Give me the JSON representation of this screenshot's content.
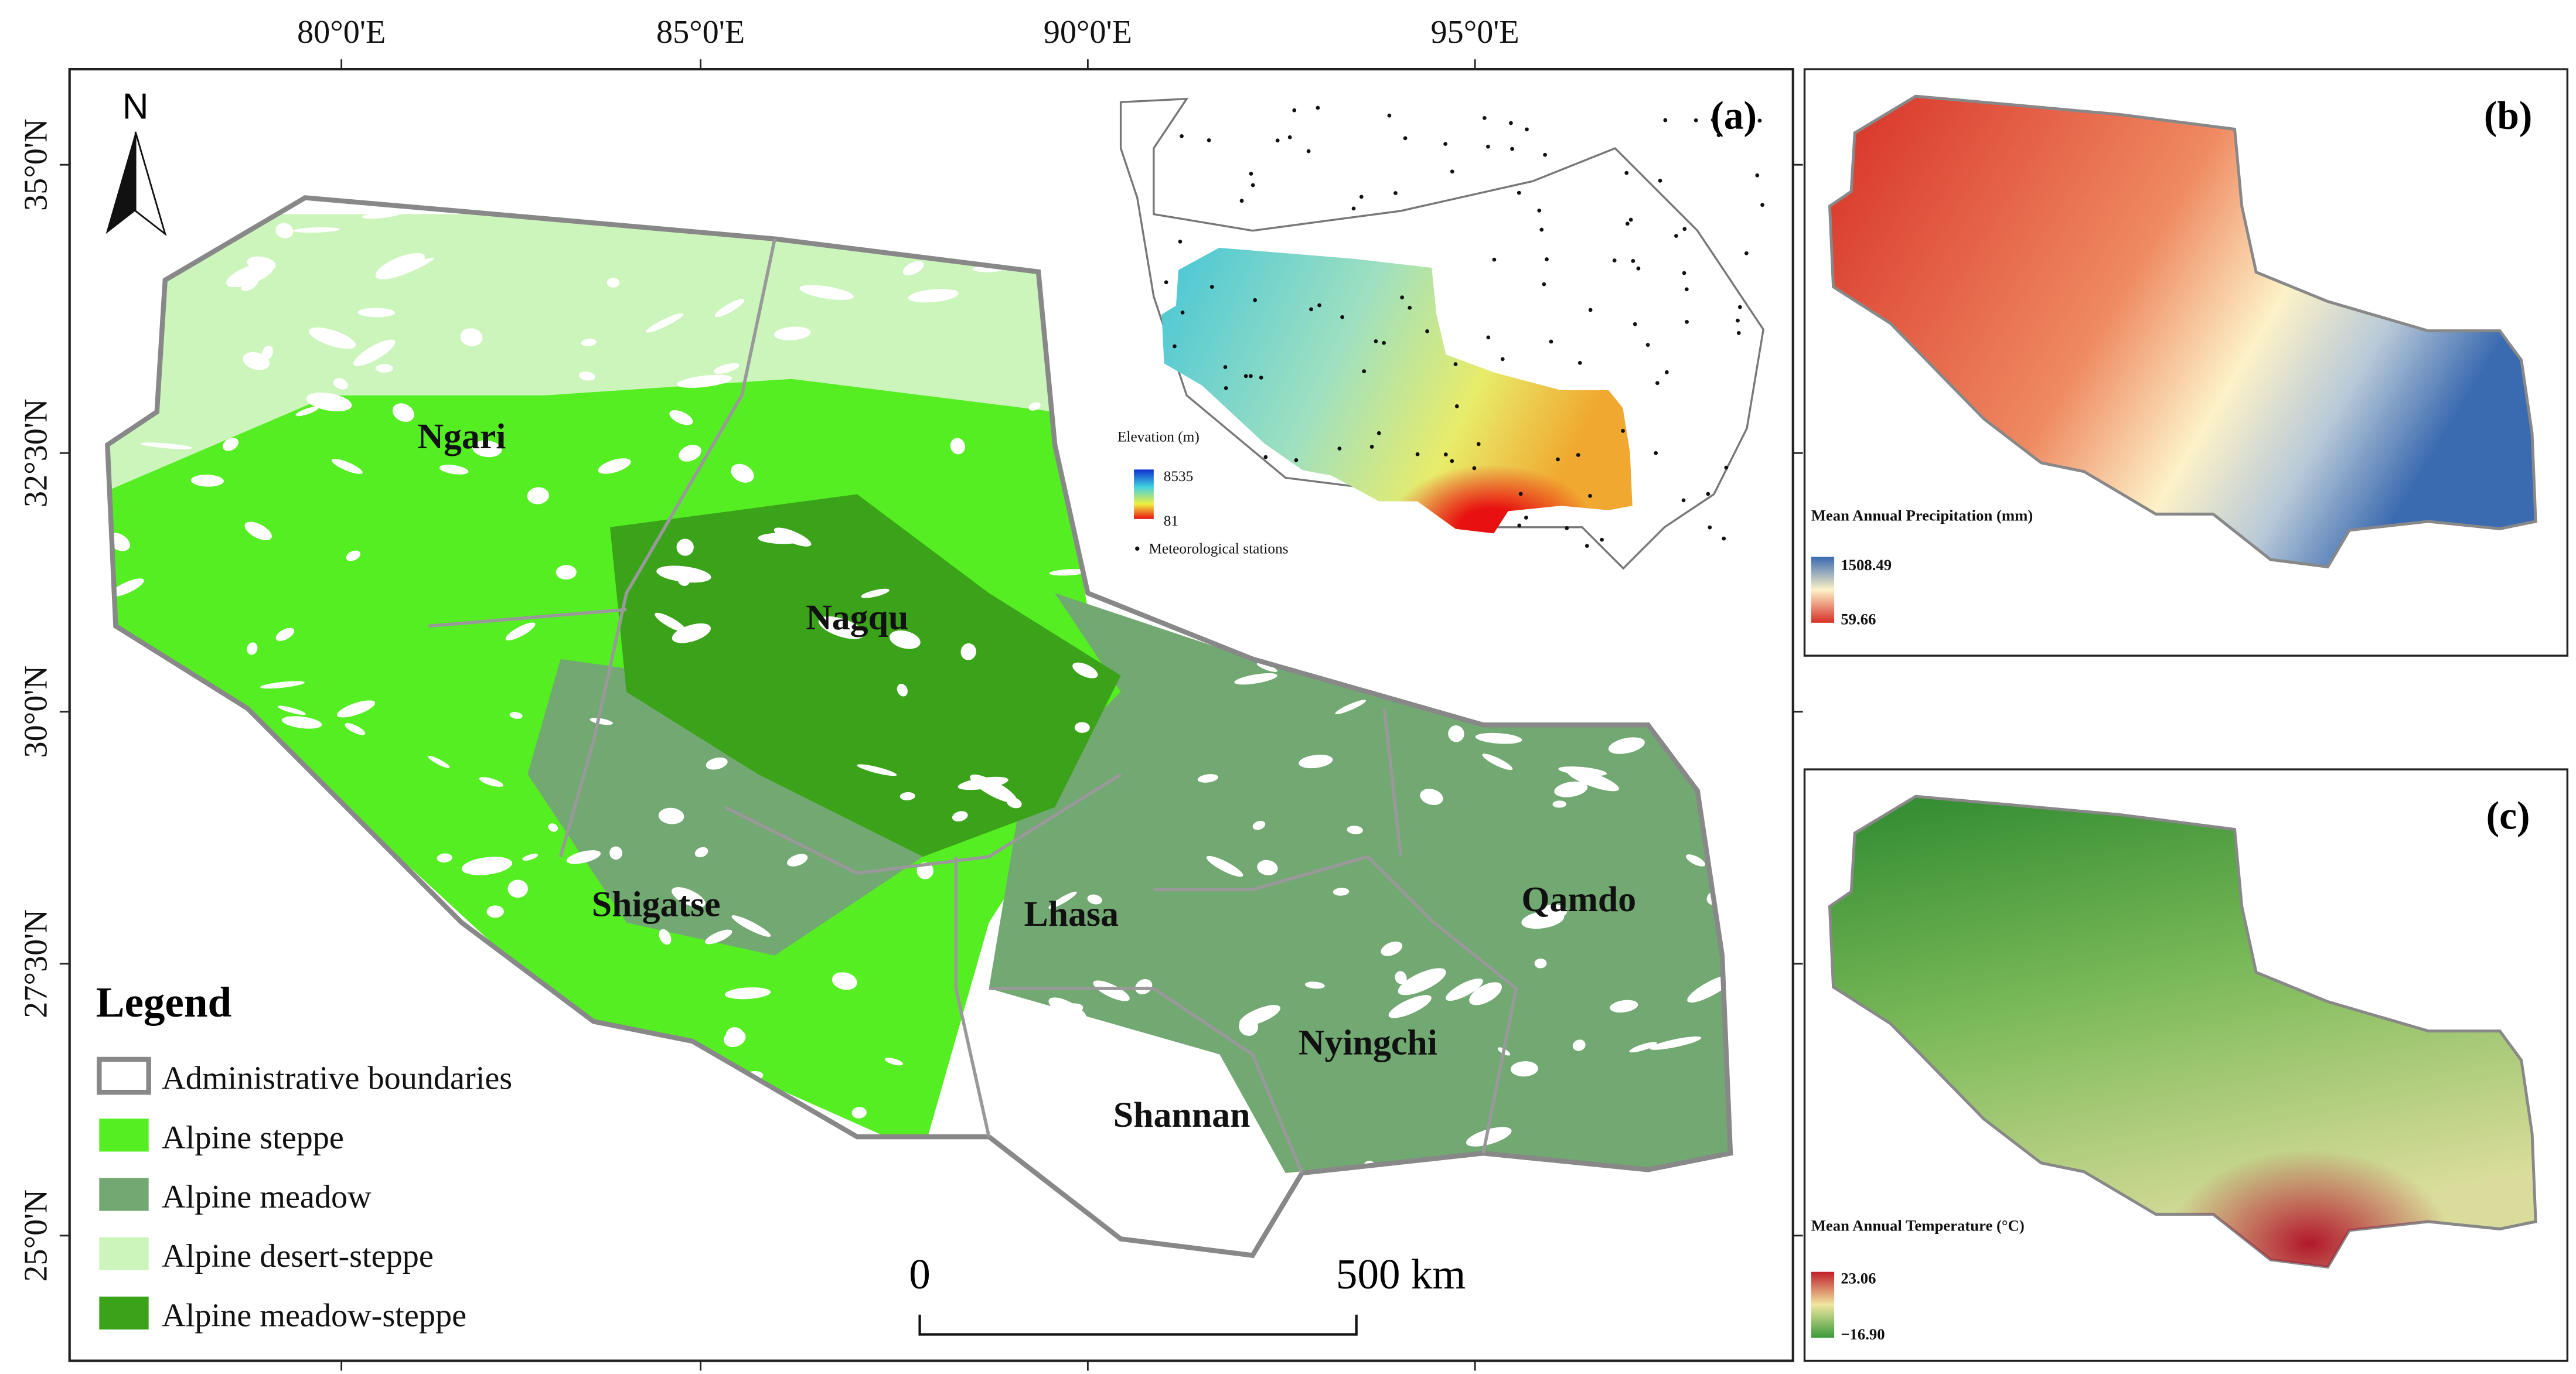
{
  "main_map": {
    "panel_label": "(a)",
    "north_arrow": "N",
    "longitude_labels": [
      "80°0'E",
      "85°0'E",
      "90°0'E",
      "95°0'E"
    ],
    "latitude_labels": [
      "35°0'N",
      "32°30'N",
      "30°0'N",
      "27°30'N",
      "25°0'N"
    ],
    "regions": [
      "Ngari",
      "Nagqu",
      "Shigatse",
      "Lhasa",
      "Qamdo",
      "Nyingchi",
      "Shannan"
    ],
    "scale_bar": {
      "start": "0",
      "end": "500 km"
    },
    "legend": {
      "title": "Legend",
      "items": [
        "Administrative boundaries",
        "Alpine steppe",
        "Alpine meadow",
        "Alpine desert-steppe",
        "Alpine meadow-steppe"
      ]
    }
  },
  "inset": {
    "elevation_title": "Elevation (m)",
    "max": "8535",
    "min": "81",
    "stations": "Meteorological stations"
  },
  "precipitation_map": {
    "panel_label": "(b)",
    "title": "Mean Annual Precipitation (mm)",
    "max": "1508.49",
    "min": "59.66"
  },
  "temperature_map": {
    "panel_label": "(c)",
    "title": "Mean Annual Temperature (°C)",
    "max": "23.06",
    "min": "−16.90"
  }
}
